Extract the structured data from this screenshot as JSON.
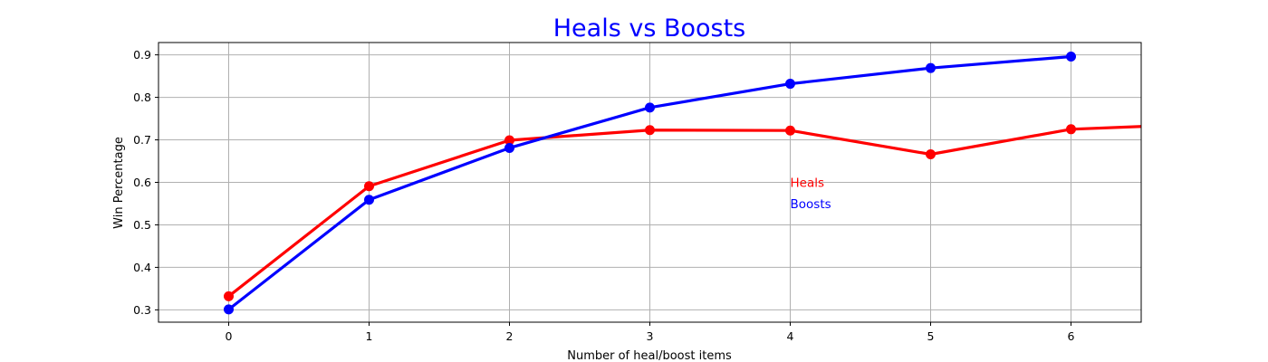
{
  "chart_data": {
    "type": "line",
    "title": "Heals vs Boosts",
    "xlabel": "Number of heal/boost items",
    "ylabel": "Win Percentage",
    "x_ticks": [
      0,
      1,
      2,
      3,
      4,
      5,
      6
    ],
    "y_ticks": [
      0.3,
      0.4,
      0.5,
      0.6,
      0.7,
      0.8,
      0.9
    ],
    "xlim": [
      -0.5,
      6.5
    ],
    "ylim": [
      0.271,
      0.929
    ],
    "grid": true,
    "series": [
      {
        "name": "Heals",
        "color": "#ff0000",
        "x": [
          0,
          1,
          2,
          3,
          4,
          5,
          6,
          7
        ],
        "y": [
          0.332,
          0.591,
          0.699,
          0.723,
          0.722,
          0.666,
          0.725,
          0.738
        ]
      },
      {
        "name": "Boosts",
        "color": "#0000ff",
        "x": [
          0,
          1,
          2,
          3,
          4,
          5,
          6
        ],
        "y": [
          0.301,
          0.559,
          0.681,
          0.776,
          0.832,
          0.869,
          0.896
        ]
      }
    ],
    "annotations": [
      {
        "text": "Heals",
        "x": 4,
        "y": 0.6,
        "color": "#ff0000"
      },
      {
        "text": "Boosts",
        "x": 4,
        "y": 0.55,
        "color": "#0000ff"
      }
    ]
  }
}
